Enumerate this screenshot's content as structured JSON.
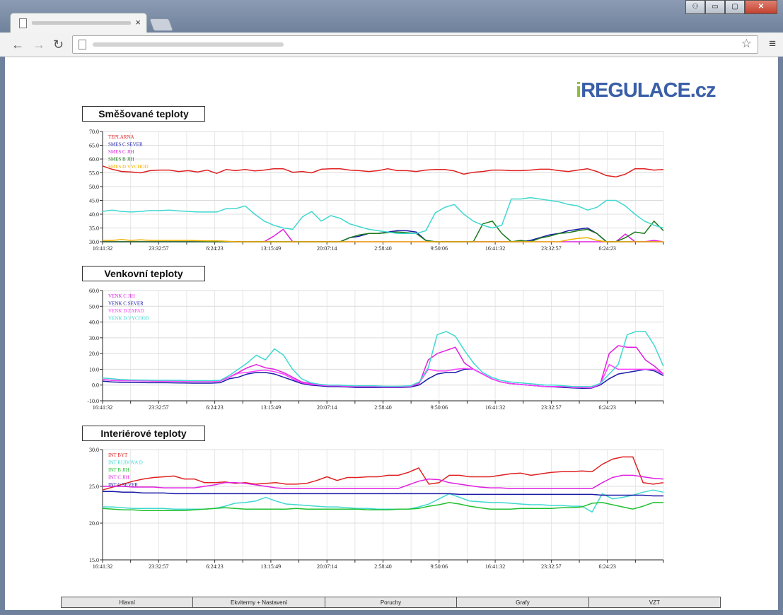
{
  "browser": {
    "close_tab_glyph": "×",
    "window_buttons": [
      "⚇",
      "▭",
      "▢",
      "✕"
    ],
    "back_glyph": "←",
    "forward_glyph": "→",
    "reload_glyph": "↻",
    "star_glyph": "☆",
    "menu_glyph": "≡"
  },
  "logo": {
    "prefix": "i",
    "name": "REGULACE",
    "suffix": ".cz",
    "brand_blue": "#3a5fa8",
    "brand_green": "#8ebd3b"
  },
  "nav": [
    "Hlavní",
    "Ekvitermy + Nastavení",
    "Poruchy",
    "Grafy",
    "VZT"
  ],
  "x_ticks": [
    "16:41:32",
    "20:07:14",
    "23:32:57",
    "2:58:40",
    "6:24:23",
    "9:50:06",
    "13:15:49",
    "16:41:32",
    "20:07:14",
    "23:32:57",
    "2:58:40",
    "6:24:23",
    "9:50:06",
    "13:15:49",
    "16:41:32",
    "20:07:14",
    "23:32:57",
    "2:58:40",
    "6:24:23",
    "9:50:06",
    "13:15:49"
  ],
  "chart_data": [
    {
      "type": "line",
      "title": "Směšované teploty",
      "ylim": [
        30,
        70
      ],
      "yticks": [
        "70.0",
        "65.0",
        "60.0",
        "55.0",
        "50.0",
        "45.0",
        "40.0",
        "35.0",
        "30.0"
      ],
      "grid": true,
      "legend_position": "top-left",
      "series": [
        {
          "name": "TEPLARNA",
          "color": "#e02020",
          "values": [
            57.5,
            56.3,
            55.5,
            55.3,
            55,
            55.8,
            56,
            56,
            55.5,
            55.8,
            55.3,
            56,
            54.8,
            56.2,
            55.8,
            56.2,
            55.7,
            56,
            56.5,
            56.5,
            55.2,
            55.5,
            55,
            56.3,
            56.5,
            56.5,
            56,
            55.8,
            55.5,
            55.8,
            56.5,
            55.8,
            55.8,
            55.5,
            56,
            56.2,
            56.2,
            55.7,
            54.5,
            55.2,
            55.5,
            56,
            56,
            55.8,
            55.8,
            56,
            56.3,
            56.3,
            55.8,
            55.5,
            56,
            56.5,
            55.5,
            54,
            53.5,
            54.5,
            56.5,
            56.5,
            56,
            56.2
          ]
        },
        {
          "name": "SMES C SEVER",
          "color": "#1a1aa8",
          "values": [
            30,
            30,
            30,
            30,
            30,
            30,
            30,
            30,
            30,
            30,
            30,
            30,
            30,
            30,
            30,
            30,
            30,
            30,
            30,
            30,
            30,
            30,
            30,
            30,
            30,
            30,
            31.5,
            32,
            33,
            33,
            33.5,
            34,
            34,
            33.5,
            30.5,
            30,
            30,
            30,
            30,
            30,
            30,
            30,
            30,
            30,
            30,
            30.5,
            31.5,
            32.5,
            33,
            34,
            34.5,
            35,
            33,
            30,
            30,
            30,
            30,
            30,
            30,
            30
          ]
        },
        {
          "name": "SMES C JIH",
          "color": "#e020e0",
          "values": [
            30,
            30,
            30,
            30,
            30,
            30,
            30,
            30,
            30,
            30,
            30,
            30,
            30,
            30,
            30,
            30,
            30,
            30,
            32,
            34.5,
            30,
            30,
            30,
            30,
            30,
            30,
            30,
            30,
            30,
            30,
            30,
            30,
            30,
            30,
            30,
            30,
            30,
            30,
            30,
            30,
            30,
            30,
            30,
            30,
            30,
            30,
            30,
            30,
            30,
            30,
            30,
            30,
            30,
            30,
            30,
            32.8,
            30,
            30,
            30.5,
            30
          ]
        },
        {
          "name": "SMES B JIH",
          "color": "#1a7a1a",
          "values": [
            30,
            30,
            30,
            30,
            30,
            30,
            30,
            30,
            30,
            30,
            30,
            30,
            30,
            30,
            30,
            30,
            30,
            30,
            30,
            30,
            30,
            30,
            30,
            30,
            30,
            30,
            31.5,
            32.5,
            33,
            33,
            33.3,
            33.5,
            33.3,
            33,
            30.5,
            30,
            30,
            30,
            30,
            30,
            36.5,
            37.5,
            33,
            30,
            30.5,
            30,
            31.3,
            32,
            33,
            33.3,
            34,
            34.5,
            33,
            30,
            30,
            31.5,
            33.5,
            33,
            37.5,
            34
          ]
        },
        {
          "name": "SMES D VYCHOD",
          "color": "#f0b000",
          "values": [
            30.5,
            30.5,
            30.8,
            30.5,
            30.7,
            30.5,
            30.5,
            30.5,
            30.5,
            30.5,
            30.4,
            30.3,
            30.3,
            30.2,
            30,
            30,
            30,
            30,
            30,
            30,
            30,
            30,
            30,
            30,
            30,
            30,
            30,
            30,
            30,
            30,
            30,
            30,
            30,
            30,
            30,
            30,
            30,
            30,
            30,
            30,
            30,
            30,
            30,
            30,
            30,
            30,
            30,
            30,
            30,
            30.7,
            31.2,
            31.5,
            30.5,
            30,
            30,
            30,
            30,
            30,
            30,
            30
          ]
        },
        {
          "name": "",
          "color": "#40d8d0",
          "values": [
            41,
            41.5,
            41,
            40.8,
            41,
            41.3,
            41.3,
            41.5,
            41.2,
            41,
            40.8,
            40.8,
            40.8,
            42,
            42,
            43,
            40,
            37.5,
            36,
            35,
            34.5,
            39,
            41,
            37.5,
            39.5,
            38.5,
            36.5,
            35.5,
            34.5,
            34,
            33.5,
            33,
            33,
            33,
            34,
            40.5,
            42.5,
            43.5,
            40,
            37.5,
            36,
            35,
            36,
            45.5,
            45.5,
            46,
            45.5,
            45,
            44.5,
            43.5,
            43,
            41.5,
            42.5,
            45,
            45,
            43,
            40,
            37.5,
            36,
            35
          ]
        }
      ]
    },
    {
      "type": "line",
      "title": "Venkovní teploty",
      "ylim": [
        -10,
        60
      ],
      "yticks": [
        "60.0",
        "50.0",
        "40.0",
        "30.0",
        "20.0",
        "10.0",
        "0.0",
        "-10.0"
      ],
      "grid": true,
      "legend_position": "top-left",
      "series": [
        {
          "name": "VENK C JIH",
          "color": "#e020e0",
          "values": [
            3.5,
            3,
            2.8,
            2.8,
            2.7,
            2.6,
            2.5,
            2.5,
            2.5,
            2.4,
            2.3,
            2.3,
            2.3,
            2.5,
            5,
            8,
            11,
            13,
            11,
            10,
            8,
            5,
            2,
            1,
            0,
            -0.5,
            -0.5,
            -0.8,
            -1,
            -1,
            -1,
            -1.2,
            -1.3,
            -1.2,
            -1,
            1,
            16,
            20,
            22,
            24,
            14,
            10,
            7,
            4,
            2,
            1,
            0.5,
            0,
            -0.5,
            -1,
            -1,
            -1,
            -1.5,
            -1.5,
            -1.8,
            0.5,
            20,
            25,
            24,
            24,
            16,
            12,
            7
          ]
        },
        {
          "name": "VENK C SEVER",
          "color": "#1a1aa8",
          "values": [
            2.5,
            2,
            1.8,
            1.7,
            1.6,
            1.5,
            1.5,
            1.5,
            1.4,
            1.3,
            1.2,
            1.2,
            1.2,
            1.5,
            4,
            5,
            7,
            8,
            8,
            7,
            5,
            3,
            1,
            0,
            -0.5,
            -1,
            -1,
            -1.2,
            -1.5,
            -1.5,
            -1.5,
            -1.5,
            -1.6,
            -1.5,
            -1.3,
            0,
            4,
            7,
            8,
            8,
            10,
            10,
            7,
            4,
            2,
            1,
            0.5,
            0,
            -0.5,
            -1,
            -1.2,
            -1.5,
            -1.8,
            -2,
            -2,
            0,
            4,
            7,
            8,
            9,
            10,
            9,
            6
          ]
        },
        {
          "name": "VENK D ZAPAD",
          "color": "#ff40ff",
          "values": [
            3.5,
            3,
            2.8,
            2.8,
            2.7,
            2.6,
            2.5,
            2.5,
            2.5,
            2.4,
            2.3,
            2.3,
            2.3,
            2.5,
            5,
            7.5,
            8,
            9,
            9.5,
            8.5,
            7,
            4,
            1.5,
            0.5,
            0,
            -0.5,
            -0.5,
            -0.8,
            -1,
            -1,
            -1,
            -1.2,
            -1.3,
            -1.2,
            -1,
            1.5,
            10,
            9,
            9,
            10,
            10.5,
            10,
            7,
            4,
            2,
            1,
            0.5,
            0,
            -0.5,
            -1,
            -1,
            -1,
            -1.5,
            -1.5,
            -1.8,
            0.5,
            13,
            10,
            10,
            10,
            10,
            10,
            7
          ]
        },
        {
          "name": "VENK D VYCHOD",
          "color": "#40d8d0",
          "values": [
            4.5,
            4,
            3.5,
            3.3,
            3.2,
            3.1,
            3,
            3,
            3,
            2.9,
            2.8,
            2.8,
            2.8,
            3,
            6,
            10,
            14,
            19,
            16,
            23,
            19,
            10,
            4,
            1.5,
            0.5,
            0,
            0,
            -0.3,
            -0.5,
            -0.5,
            -0.5,
            -0.7,
            -0.8,
            -0.7,
            -0.5,
            2,
            11,
            32,
            34,
            31,
            22,
            14,
            8,
            5,
            3,
            2,
            1.5,
            1,
            0.5,
            0,
            0,
            -0.5,
            -1,
            -1,
            -1,
            1,
            7,
            13,
            32,
            34,
            34,
            25,
            12
          ]
        }
      ]
    },
    {
      "type": "line",
      "title": "Interiérové teploty",
      "ylim": [
        15,
        30
      ],
      "yticks": [
        "30.0",
        "25.0",
        "20.0",
        "15.0"
      ],
      "grid": true,
      "legend_position": "top-left",
      "series": [
        {
          "name": "INT BYT",
          "color": "#e02020",
          "values": [
            24.5,
            24.9,
            25.3,
            25.7,
            26,
            26.2,
            26.3,
            26.4,
            26,
            26,
            25.5,
            25.5,
            25.6,
            25.4,
            25.5,
            25.3,
            25.4,
            25.5,
            25.3,
            25.3,
            25.4,
            25.8,
            26.3,
            25.8,
            26.2,
            26.2,
            26.3,
            26.3,
            26.5,
            26.5,
            26.9,
            27.5,
            25.3,
            25.5,
            26.5,
            26.5,
            26.3,
            26.3,
            26.3,
            26.5,
            26.7,
            26.8,
            26.5,
            26.7,
            26.9,
            27,
            27,
            27.1,
            27,
            28,
            28.7,
            29,
            29,
            25.5,
            25.3,
            25.5
          ]
        },
        {
          "name": "INT RUDOVA D",
          "color": "#40d8d0",
          "values": [
            22.2,
            22.2,
            22.1,
            22,
            22,
            22,
            22,
            21.9,
            21.9,
            21.9,
            21.9,
            22,
            22.3,
            22.7,
            22.8,
            23,
            23.5,
            23,
            22.6,
            22.5,
            22.4,
            22.3,
            22.2,
            22.2,
            22.1,
            22,
            22,
            21.9,
            21.9,
            21.9,
            21.9,
            22.2,
            22.6,
            23.3,
            24,
            23.5,
            23,
            22.9,
            22.8,
            22.8,
            22.7,
            22.6,
            22.5,
            22.5,
            22.4,
            22.4,
            22.3,
            22.3,
            21.5,
            24,
            23.3,
            23.5,
            23.8,
            24.2,
            24.5,
            24.2
          ]
        },
        {
          "name": "INT B JIH",
          "color": "#20c030",
          "values": [
            22,
            21.9,
            21.8,
            21.8,
            21.7,
            21.7,
            21.7,
            21.7,
            21.7,
            21.8,
            21.9,
            22,
            22.1,
            22,
            21.9,
            21.9,
            21.9,
            21.9,
            21.9,
            22,
            21.9,
            21.9,
            21.9,
            21.9,
            21.9,
            21.9,
            21.8,
            21.8,
            21.8,
            21.9,
            21.9,
            22,
            22.3,
            22.5,
            22.8,
            22.6,
            22.3,
            22.1,
            21.9,
            21.9,
            21.9,
            22,
            22,
            22,
            22,
            22.1,
            22.1,
            22.2,
            22.7,
            22.8,
            22.5,
            22.2,
            21.9,
            22.3,
            22.8,
            22.8
          ]
        },
        {
          "name": "INT C JIH",
          "color": "#e020e0",
          "values": [
            25,
            25,
            25,
            24.9,
            24.9,
            24.9,
            24.8,
            24.8,
            24.8,
            24.8,
            25,
            25.2,
            25.5,
            25.5,
            25.4,
            25.2,
            25,
            24.8,
            24.7,
            24.7,
            24.7,
            24.7,
            24.7,
            24.7,
            24.7,
            24.7,
            24.7,
            24.7,
            24.7,
            24.7,
            25.2,
            25.7,
            26,
            25.9,
            25.5,
            25.3,
            25.1,
            24.9,
            24.8,
            24.8,
            24.7,
            24.7,
            24.7,
            24.7,
            24.7,
            24.7,
            24.7,
            24.7,
            24.7,
            25.5,
            26.2,
            26.5,
            26.5,
            26.3,
            26.1,
            26
          ]
        },
        {
          "name": "INT C SEVER",
          "color": "#1a1aa8",
          "values": [
            24.3,
            24.3,
            24.2,
            24.2,
            24.1,
            24.1,
            24.1,
            24,
            24,
            24,
            24,
            24,
            24,
            24,
            24,
            24,
            24,
            24,
            24,
            24,
            24,
            24,
            24,
            24,
            24,
            24,
            24,
            24,
            24,
            24,
            24,
            24,
            24,
            24,
            24,
            23.9,
            23.9,
            23.9,
            23.9,
            23.9,
            23.9,
            23.9,
            23.9,
            23.9,
            23.9,
            23.9,
            23.9,
            23.9,
            23.9,
            23.8,
            23.8,
            23.8,
            23.8,
            23.8,
            23.7,
            23.7
          ]
        }
      ]
    }
  ]
}
